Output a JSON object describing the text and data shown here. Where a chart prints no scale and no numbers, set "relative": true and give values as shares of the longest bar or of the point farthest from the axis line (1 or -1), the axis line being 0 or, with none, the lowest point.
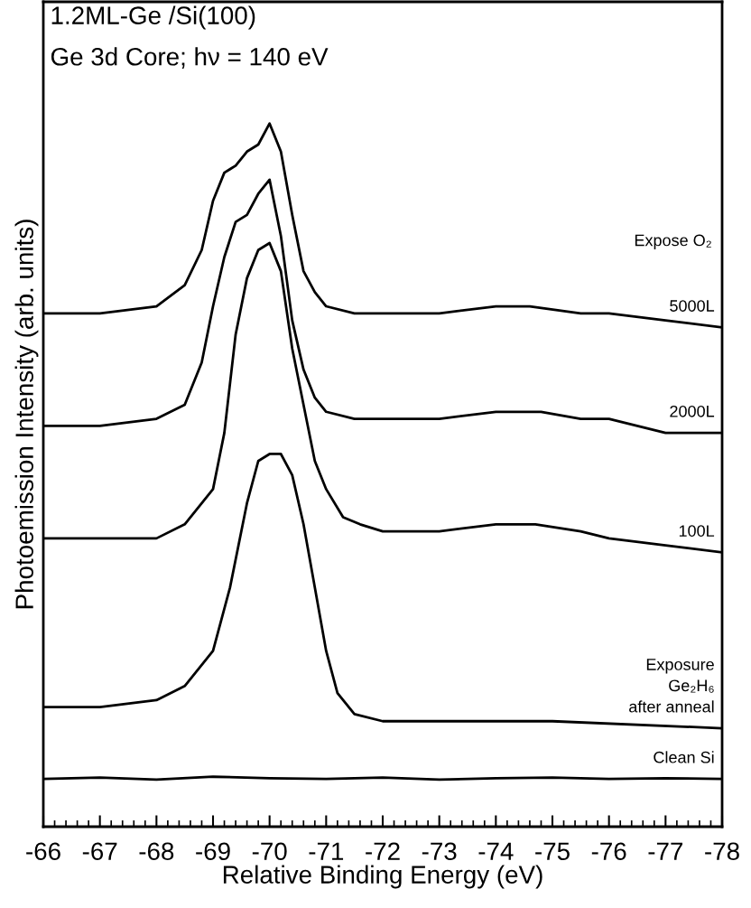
{
  "chart_data": {
    "type": "line",
    "title": "1.2ML-Ge /Si(100)",
    "subtitle": "Ge 3d Core; hν = 140 eV",
    "xlabel": "Relative Binding Energy (eV)",
    "ylabel": "Photoemission Intensity (arb. units)",
    "relative": true,
    "xlim": [
      -66,
      -78
    ],
    "xticks": [
      -66,
      -67,
      -68,
      -69,
      -70,
      -71,
      -72,
      -73,
      -74,
      -75,
      -76,
      -77,
      -78
    ],
    "grid": false,
    "legend": false,
    "marker": "none",
    "line_style": "solid",
    "annotations": [
      "Expose O₂"
    ],
    "series": [
      {
        "name": "5000L",
        "color": "#000000",
        "x": [
          -66,
          -67,
          -68,
          -68.5,
          -68.8,
          -69,
          -69.2,
          -69.4,
          -69.6,
          -69.8,
          -70,
          -70.2,
          -70.4,
          -70.6,
          -70.8,
          -71,
          -71.5,
          -72,
          -73,
          -74,
          -74.6,
          -75.5,
          -76,
          -77,
          -78
        ],
        "values": [
          0.73,
          0.73,
          0.74,
          0.77,
          0.82,
          0.89,
          0.93,
          0.94,
          0.96,
          0.97,
          1.0,
          0.96,
          0.87,
          0.79,
          0.76,
          0.74,
          0.73,
          0.73,
          0.73,
          0.74,
          0.74,
          0.73,
          0.73,
          0.72,
          0.71
        ]
      },
      {
        "name": "2000L",
        "color": "#000000",
        "x": [
          -66,
          -67,
          -68,
          -68.5,
          -68.8,
          -69,
          -69.2,
          -69.4,
          -69.6,
          -69.8,
          -70,
          -70.2,
          -70.4,
          -70.6,
          -70.8,
          -71,
          -71.5,
          -72,
          -73,
          -74,
          -74.8,
          -75.5,
          -76,
          -77,
          -78
        ],
        "values": [
          0.57,
          0.57,
          0.58,
          0.6,
          0.66,
          0.74,
          0.81,
          0.86,
          0.87,
          0.9,
          0.92,
          0.84,
          0.72,
          0.65,
          0.61,
          0.59,
          0.58,
          0.58,
          0.58,
          0.59,
          0.59,
          0.58,
          0.58,
          0.56,
          0.56
        ]
      },
      {
        "name": "100L",
        "color": "#000000",
        "x": [
          -66,
          -68,
          -68.5,
          -69,
          -69.2,
          -69.4,
          -69.6,
          -69.8,
          -70,
          -70.2,
          -70.4,
          -70.6,
          -70.8,
          -71,
          -71.3,
          -71.6,
          -72,
          -73,
          -74,
          -74.7,
          -75.5,
          -76,
          -77,
          -78
        ],
        "values": [
          0.41,
          0.41,
          0.43,
          0.48,
          0.56,
          0.7,
          0.78,
          0.82,
          0.83,
          0.79,
          0.68,
          0.6,
          0.52,
          0.48,
          0.44,
          0.43,
          0.42,
          0.42,
          0.43,
          0.43,
          0.42,
          0.41,
          0.4,
          0.39
        ]
      },
      {
        "name": "Exposure\nGe₂H₆\nafter anneal",
        "color": "#000000",
        "x": [
          -66,
          -67,
          -68,
          -68.5,
          -69,
          -69.3,
          -69.6,
          -69.8,
          -70,
          -70.2,
          -70.4,
          -70.6,
          -70.8,
          -71,
          -71.2,
          -71.5,
          -72,
          -73,
          -75,
          -78
        ],
        "values": [
          0.17,
          0.17,
          0.18,
          0.2,
          0.25,
          0.34,
          0.46,
          0.52,
          0.53,
          0.53,
          0.5,
          0.43,
          0.34,
          0.25,
          0.19,
          0.16,
          0.15,
          0.15,
          0.15,
          0.14
        ]
      },
      {
        "name": "Clean Si",
        "color": "#000000",
        "x": [
          -66,
          -67,
          -68,
          -69,
          -70,
          -71,
          -72,
          -73,
          -74,
          -75,
          -76,
          -77,
          -78
        ],
        "values": [
          0.068,
          0.07,
          0.067,
          0.071,
          0.069,
          0.068,
          0.07,
          0.067,
          0.069,
          0.07,
          0.068,
          0.069,
          0.068
        ]
      }
    ]
  }
}
